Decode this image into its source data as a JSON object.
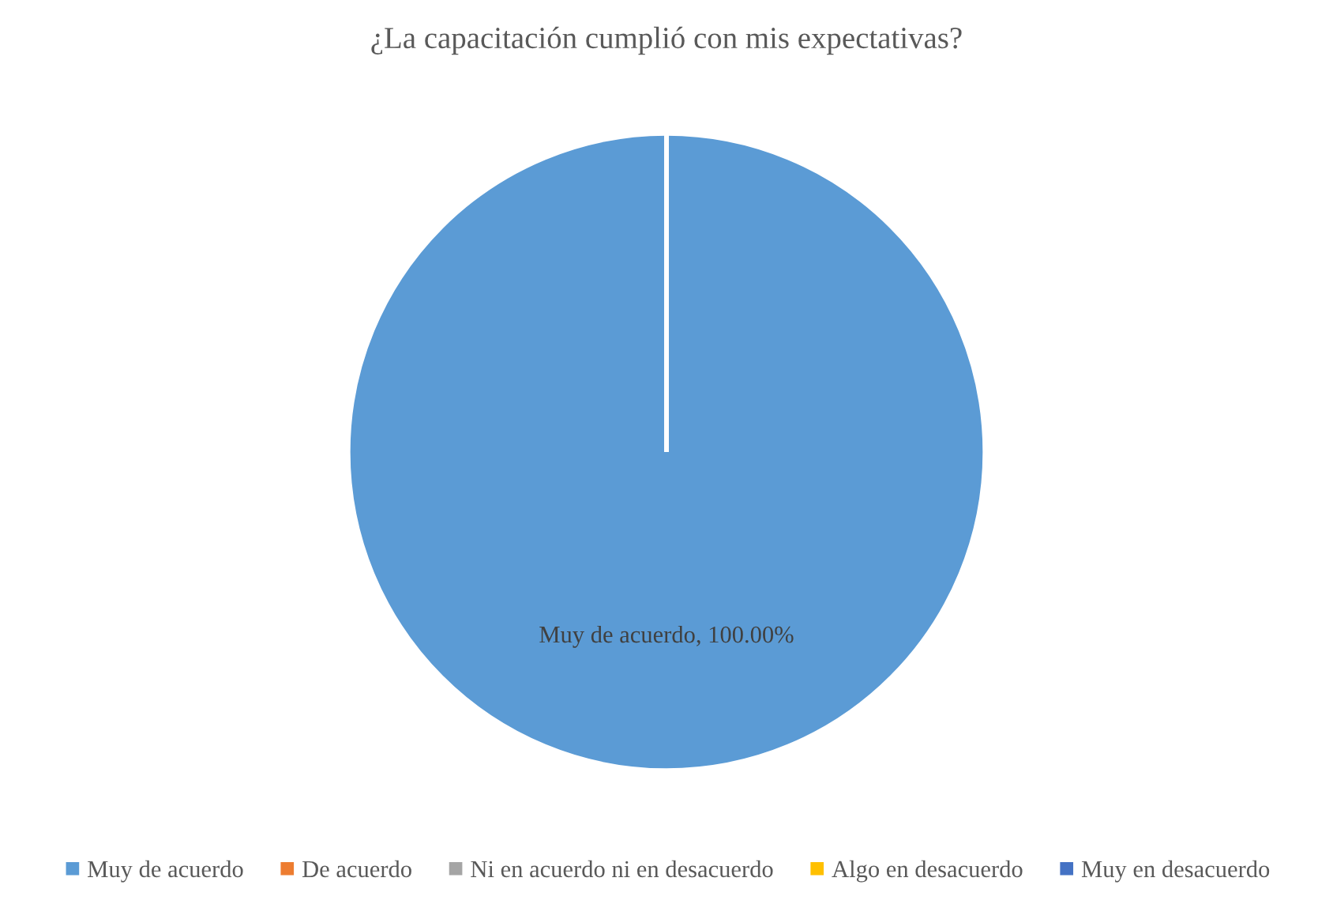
{
  "chart_data": {
    "type": "pie",
    "title": "¿La capacitación cumplió con mis expectativas?",
    "categories": [
      "Muy de acuerdo",
      "De acuerdo",
      "Ni en acuerdo ni en desacuerdo",
      "Algo en desacuerdo",
      "Muy en desacuerdo"
    ],
    "values": [
      100,
      0,
      0,
      0,
      0
    ],
    "colors": [
      "#5b9bd5",
      "#ed7d31",
      "#a5a5a5",
      "#ffc000",
      "#4472c4"
    ],
    "value_labels": [
      "Muy de acuerdo, 100.00%",
      null,
      null,
      null,
      null
    ],
    "legend": "bottom"
  }
}
